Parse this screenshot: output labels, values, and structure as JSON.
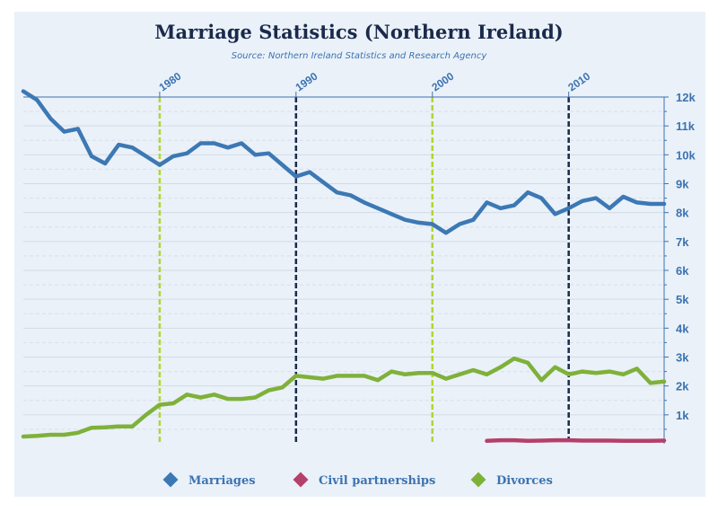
{
  "chart_data": {
    "type": "line",
    "title": "Marriage Statistics (Northern Ireland)",
    "subtitle": "Source: Northern Ireland Statistics and Research Agency",
    "xlim": [
      1970,
      2017
    ],
    "ylim": [
      0,
      12000
    ],
    "y_ticks": [
      "1k",
      "2k",
      "3k",
      "4k",
      "5k",
      "6k",
      "7k",
      "8k",
      "9k",
      "10k",
      "11k",
      "12k"
    ],
    "y_tick_values": [
      1000,
      2000,
      3000,
      4000,
      5000,
      6000,
      7000,
      8000,
      9000,
      10000,
      11000,
      12000
    ],
    "y_axis_position": "right",
    "x_ticks": [
      {
        "label": "1980",
        "value": 1980,
        "line_color": "#b5d334"
      },
      {
        "label": "1990",
        "value": 1990,
        "line_color": "#1a2a4a"
      },
      {
        "label": "2000",
        "value": 2000,
        "line_color": "#b5d334"
      },
      {
        "label": "2010",
        "value": 2010,
        "line_color": "#1a2a4a"
      }
    ],
    "grid": true,
    "legend_position": "bottom",
    "series": [
      {
        "name": "Marriages",
        "color": "#3c78b4",
        "x": [
          1970,
          1971,
          1972,
          1973,
          1974,
          1975,
          1976,
          1977,
          1978,
          1979,
          1980,
          1981,
          1982,
          1983,
          1984,
          1985,
          1986,
          1987,
          1988,
          1989,
          1990,
          1991,
          1992,
          1993,
          1994,
          1995,
          1996,
          1997,
          1998,
          1999,
          2000,
          2001,
          2002,
          2003,
          2004,
          2005,
          2006,
          2007,
          2008,
          2009,
          2010,
          2011,
          2012,
          2013,
          2014,
          2015,
          2016,
          2017
        ],
        "values": [
          12200,
          11900,
          11250,
          10800,
          10900,
          9950,
          9700,
          10350,
          10250,
          9950,
          9650,
          9950,
          10050,
          10400,
          10400,
          10250,
          10400,
          10000,
          10050,
          9650,
          9250,
          9400,
          9050,
          8700,
          8600,
          8350,
          8150,
          7950,
          7750,
          7650,
          7600,
          7300,
          7600,
          7750,
          8350,
          8150,
          8250,
          8700,
          8500,
          7950,
          8150,
          8400,
          8500,
          8150,
          8550,
          8350,
          8300,
          8300
        ]
      },
      {
        "name": "Civil partnerships",
        "color": "#b5406a",
        "x": [
          2004,
          2005,
          2006,
          2007,
          2008,
          2009,
          2010,
          2011,
          2012,
          2013,
          2014,
          2015,
          2016,
          2017
        ],
        "values": [
          100,
          120,
          120,
          100,
          110,
          120,
          120,
          110,
          110,
          110,
          100,
          100,
          100,
          110
        ]
      },
      {
        "name": "Divorces",
        "color": "#7fb13a",
        "x": [
          1970,
          1971,
          1972,
          1973,
          1974,
          1975,
          1976,
          1977,
          1978,
          1979,
          1980,
          1981,
          1982,
          1983,
          1984,
          1985,
          1986,
          1987,
          1988,
          1989,
          1990,
          1991,
          1992,
          1993,
          1994,
          1995,
          1996,
          1997,
          1998,
          1999,
          2000,
          2001,
          2002,
          2003,
          2004,
          2005,
          2006,
          2007,
          2008,
          2009,
          2010,
          2011,
          2012,
          2013,
          2014,
          2015,
          2016,
          2017
        ],
        "values": [
          250,
          270,
          310,
          310,
          380,
          550,
          570,
          600,
          600,
          1000,
          1350,
          1400,
          1700,
          1600,
          1700,
          1550,
          1550,
          1600,
          1850,
          1950,
          2350,
          2300,
          2250,
          2350,
          2350,
          2350,
          2200,
          2500,
          2400,
          2450,
          2450,
          2250,
          2400,
          2550,
          2400,
          2650,
          2950,
          2800,
          2200,
          2650,
          2400,
          2500,
          2450,
          2500,
          2400,
          2600,
          2100,
          2150
        ]
      }
    ]
  }
}
